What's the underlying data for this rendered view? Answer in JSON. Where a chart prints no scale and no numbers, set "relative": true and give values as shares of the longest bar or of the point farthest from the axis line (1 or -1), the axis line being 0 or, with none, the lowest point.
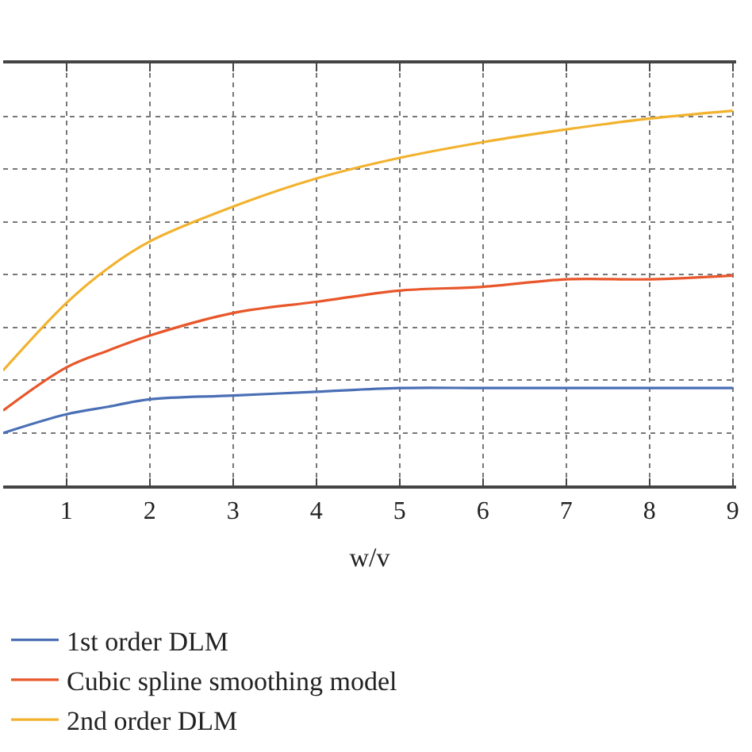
{
  "chart_data": {
    "type": "line",
    "relative": true,
    "xlabel": "w/v",
    "xlim": [
      0.24,
      9.04
    ],
    "xticks": [
      1,
      2,
      3,
      4,
      5,
      6,
      7,
      8,
      9
    ],
    "grid": true,
    "legend": "bottom left",
    "line_style": "solid",
    "marker": "none",
    "x": [
      0.24,
      1,
      1.5,
      2,
      3,
      4,
      5,
      6,
      7,
      8,
      9
    ],
    "series": [
      {
        "name": "1st order DLM",
        "color": "#4a6fb5",
        "values": [
          0.14,
          0.19,
          0.21,
          0.23,
          0.24,
          0.25,
          0.26,
          0.26,
          0.26,
          0.26,
          0.26
        ]
      },
      {
        "name": "Cubic spline smoothing model",
        "color": "#e8562a",
        "values": [
          0.2,
          0.315,
          0.36,
          0.4,
          0.46,
          0.49,
          0.52,
          0.53,
          0.55,
          0.55,
          0.56
        ]
      },
      {
        "name": "2nd order DLM",
        "color": "#f2b22e",
        "values": [
          0.307,
          0.487,
          0.58,
          0.651,
          0.744,
          0.819,
          0.874,
          0.916,
          0.95,
          0.979,
          1.0
        ]
      }
    ]
  }
}
